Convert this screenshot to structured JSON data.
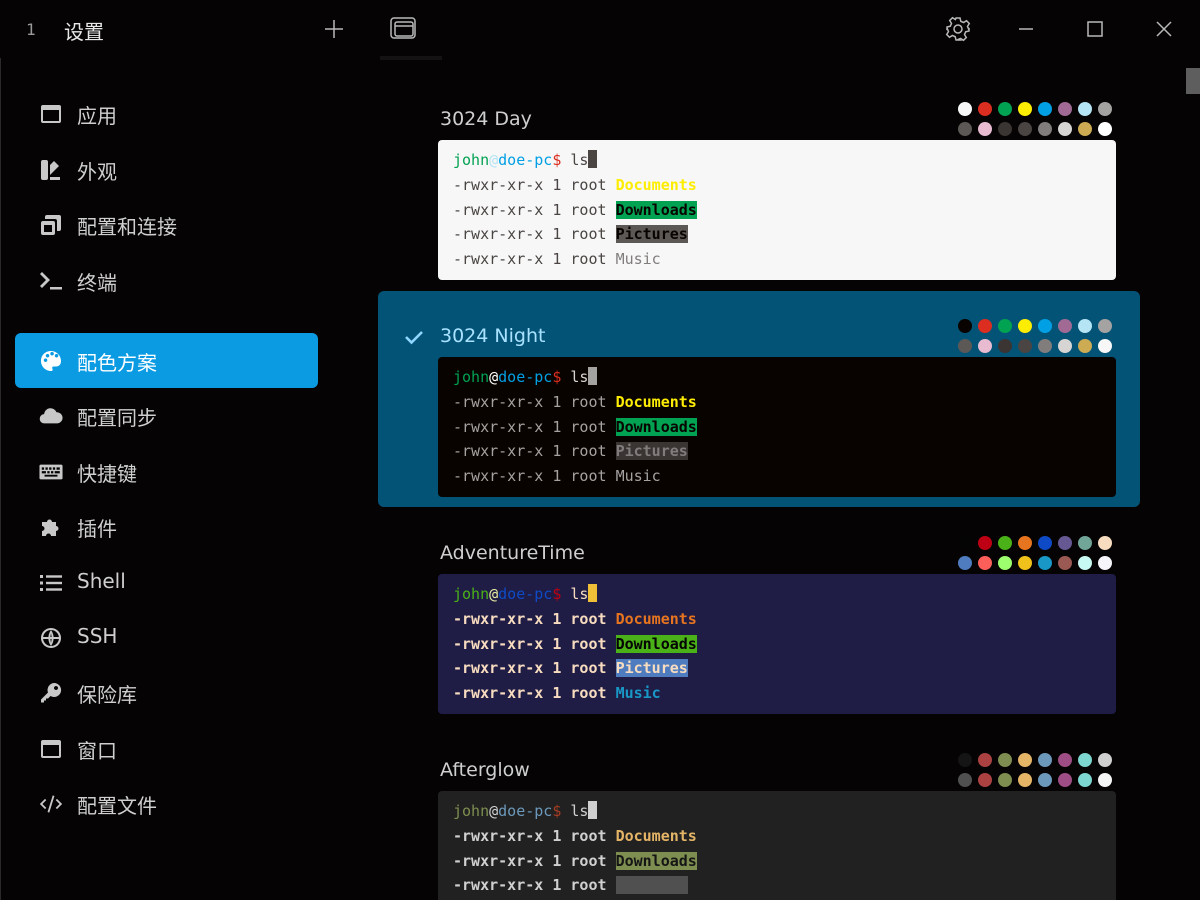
{
  "tab": {
    "index": "1",
    "title": "设置"
  },
  "sidebar": {
    "items": [
      {
        "label": "应用",
        "icon": "window-icon",
        "active": false
      },
      {
        "label": "外观",
        "icon": "paint-icon",
        "active": false
      },
      {
        "label": "配置和连接",
        "icon": "copy-icon",
        "active": false
      },
      {
        "label": "终端",
        "icon": "terminal-icon",
        "active": false
      },
      {
        "label": "配色方案",
        "icon": "palette-icon",
        "active": true
      },
      {
        "label": "配置同步",
        "icon": "cloud-icon",
        "active": false
      },
      {
        "label": "快捷键",
        "icon": "keyboard-icon",
        "active": false
      },
      {
        "label": "插件",
        "icon": "puzzle-icon",
        "active": false
      },
      {
        "label": "Shell",
        "icon": "list-icon",
        "active": false
      },
      {
        "label": "SSH",
        "icon": "globe-icon",
        "active": false
      },
      {
        "label": "保险库",
        "icon": "key-icon",
        "active": false
      },
      {
        "label": "窗口",
        "icon": "window-icon",
        "active": false
      },
      {
        "label": "配置文件",
        "icon": "code-icon",
        "active": false
      }
    ]
  },
  "prompt": {
    "user": "john",
    "at": "@",
    "host": "doe-pc",
    "sign": "$",
    "cmd": " ls"
  },
  "listing": {
    "perm": "-rwxr-xr-x 1 root ",
    "files": [
      "Documents",
      "Downloads",
      "Pictures",
      "Music"
    ]
  },
  "themes": [
    {
      "name": "3024 Day",
      "selected": false,
      "bg": "#f7f7f7",
      "fg": "#4a4543",
      "bold": false,
      "user": "#01a252",
      "at": "#b5e4f4",
      "host": "#01a0e4",
      "sign": "#db2d20",
      "cmd": "#4a4543",
      "cursor": "#4a4543",
      "documents": {
        "color": "#fded02",
        "bg": ""
      },
      "downloads": {
        "color": "#090300",
        "bg": "#01a252"
      },
      "pictures": {
        "color": "#090300",
        "bg": "#5c5855"
      },
      "music": {
        "color": "#807d7c",
        "bg": ""
      },
      "swatches": [
        "#f7f7f7",
        "#db2d20",
        "#01a252",
        "#fded02",
        "#01a0e4",
        "#a16a94",
        "#b5e4f4",
        "#a5a2a2",
        "#5c5855",
        "#e8bbd0",
        "#3a3432",
        "#4a4543",
        "#807d7c",
        "#d6d5d4",
        "#cdab53",
        "#ffffff"
      ]
    },
    {
      "name": "3024 Night",
      "selected": true,
      "bg": "#090300",
      "fg": "#a5a2a2",
      "bold": false,
      "user": "#01a252",
      "at": "#ffffff",
      "host": "#01a0e4",
      "sign": "#db2d20",
      "cmd": "#d6d5d4",
      "cursor": "#a5a2a2",
      "documents": {
        "color": "#fded02",
        "bg": ""
      },
      "downloads": {
        "color": "#090300",
        "bg": "#01a252"
      },
      "pictures": {
        "color": "#807d7c",
        "bg": "#3a3432"
      },
      "music": {
        "color": "#a5a2a2",
        "bg": ""
      },
      "swatches": [
        "#090300",
        "#db2d20",
        "#01a252",
        "#fded02",
        "#01a0e4",
        "#a16a94",
        "#b5e4f4",
        "#a5a2a2",
        "#5c5855",
        "#e8bbd0",
        "#3a3432",
        "#4a4543",
        "#807d7c",
        "#d6d5d4",
        "#cdab53",
        "#f7f7f7"
      ]
    },
    {
      "name": "AdventureTime",
      "selected": false,
      "bg": "#1f1d45",
      "fg": "#f8dcc0",
      "bold": true,
      "user": "#4ab118",
      "at": "#e7eba2",
      "host": "#0f4ac6",
      "sign": "#bd0013",
      "cmd": "#f8dcc0",
      "cursor": "#efbf38",
      "documents": {
        "color": "#e7741e",
        "bg": ""
      },
      "downloads": {
        "color": "#050404",
        "bg": "#4ab118"
      },
      "pictures": {
        "color": "#f8dcc0",
        "bg": "#4e7cbf"
      },
      "music": {
        "color": "#1997c6",
        "bg": ""
      },
      "swatches": [
        "#050404",
        "#bd0013",
        "#4ab118",
        "#e7741e",
        "#0f4ac6",
        "#665993",
        "#70a598",
        "#f8dcc0",
        "#4e7cbf",
        "#fc5f5a",
        "#9eff6e",
        "#efc11a",
        "#1997c6",
        "#9b5953",
        "#c8faf4",
        "#f6f5fb"
      ]
    },
    {
      "name": "Afterglow",
      "selected": false,
      "bg": "#212121",
      "fg": "#d0d0d0",
      "bold": true,
      "user": "#7e8e50",
      "at": "#d0d0d0",
      "host": "#6c99bb",
      "sign": "#a53c23",
      "cmd": "#d0d0d0",
      "cursor": "#d0d0d0",
      "documents": {
        "color": "#e5b567",
        "bg": ""
      },
      "downloads": {
        "color": "#151515",
        "bg": "#7e8e50"
      },
      "pictures": {
        "color": "#505050",
        "bg": "#505050"
      },
      "music": {
        "color": "#7dd6cf",
        "bg": ""
      },
      "swatches": [
        "#151515",
        "#ac4142",
        "#7e8e50",
        "#e5b567",
        "#6c99bb",
        "#9f4e85",
        "#7dd6cf",
        "#d0d0d0",
        "#505050",
        "#ac4142",
        "#7e8e50",
        "#e5b567",
        "#6c99bb",
        "#9f4e85",
        "#7dd6cf",
        "#f5f5f5"
      ]
    }
  ]
}
